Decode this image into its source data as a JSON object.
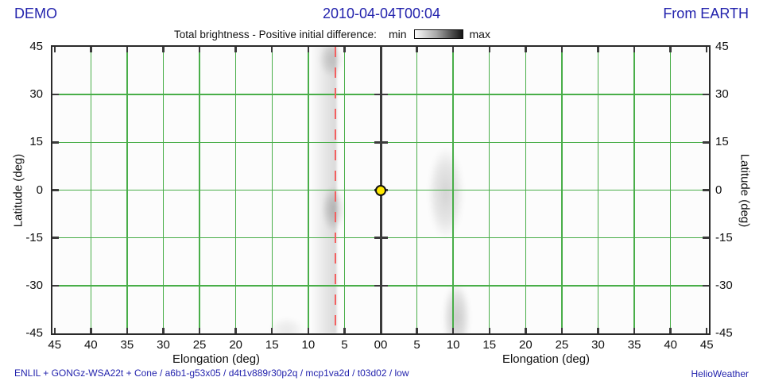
{
  "header": {
    "left": "DEMO",
    "center": "2010-04-04T00:04",
    "right": "From EARTH"
  },
  "legend": {
    "title": "Total brightness - Positive initial difference:",
    "min_label": "min",
    "max_label": "max"
  },
  "footer": {
    "model_info": "ENLIL + GONGz-WSA22t + Cone / a6b1-g53x05 / d4t1v889r30p2q / mcp1va2d / t03d02 / low",
    "credit": "HelioWeather"
  },
  "colors": {
    "accent_text": "#2323ad",
    "grid": "#49ae49",
    "axis": "#2a2a2a",
    "reference_line": "#f26060",
    "marker_fill": "#ffe800",
    "plot_bg": "#fcfcfc"
  },
  "chart_data": {
    "type": "heatmap",
    "title": "Total brightness - Positive initial difference",
    "timestamp": "2010-04-04T00:04",
    "viewpoint": "From EARTH",
    "xlabel_left": "Elongation (deg)",
    "xlabel_right": "Elongation (deg)",
    "ylabel_left": "Latitude (deg)",
    "ylabel_right": "Latitude (deg)",
    "x_axis": {
      "mirrored": true,
      "max_deg": 45.3,
      "tick_values": [
        45,
        40,
        35,
        30,
        25,
        20,
        15,
        10,
        5
      ],
      "center_label": "00",
      "gridline_values": [
        40,
        35,
        30,
        25,
        20,
        15,
        10,
        5
      ]
    },
    "y_axis": {
      "range": [
        -45,
        45
      ],
      "tick_values": [
        45,
        30,
        15,
        0,
        -15,
        -30,
        -45
      ],
      "gridline_values": [
        30,
        15,
        0,
        -15,
        -30
      ]
    },
    "legend_scale": {
      "min": "min",
      "max": "max",
      "gradient": "light-to-dark"
    },
    "observer_marker": {
      "elongation": 0,
      "latitude": 0,
      "symbol": "yellow-circle"
    },
    "reference_line": {
      "side": "left",
      "elongation": 6.2,
      "style": "dashed",
      "color": "#f26060"
    },
    "brightness_features": [
      {
        "name": "left-approach-band",
        "shape": "band",
        "side": "left",
        "elong_from": 9.7,
        "elong_to": 5.8,
        "lat_from": -45,
        "lat_to": 45,
        "peak_alpha": 0.13
      },
      {
        "name": "left-band-dark-spot",
        "shape": "ellipse",
        "side": "left",
        "elong": 6.6,
        "lat": -6,
        "elong_r": 1.3,
        "lat_r": 6.0,
        "peak_alpha": 0.2
      },
      {
        "name": "left-band-top-spot",
        "shape": "ellipse",
        "side": "left",
        "elong": 6.9,
        "lat": 41,
        "elong_r": 1.4,
        "lat_r": 4.5,
        "peak_alpha": 0.15
      },
      {
        "name": "right-mid-streak",
        "shape": "ellipse",
        "side": "right",
        "elong": 9.0,
        "lat": -1,
        "elong_r": 2.1,
        "lat_r": 12.5,
        "peak_alpha": 0.16
      },
      {
        "name": "right-bottom-streak",
        "shape": "ellipse",
        "side": "right",
        "elong": 10.5,
        "lat": -40,
        "elong_r": 1.6,
        "lat_r": 9.5,
        "peak_alpha": 0.2
      },
      {
        "name": "left-bottom-smudge",
        "shape": "ellipse",
        "side": "left",
        "elong": 13.0,
        "lat": -44,
        "elong_r": 2.0,
        "lat_r": 3.5,
        "peak_alpha": 0.08
      }
    ]
  }
}
